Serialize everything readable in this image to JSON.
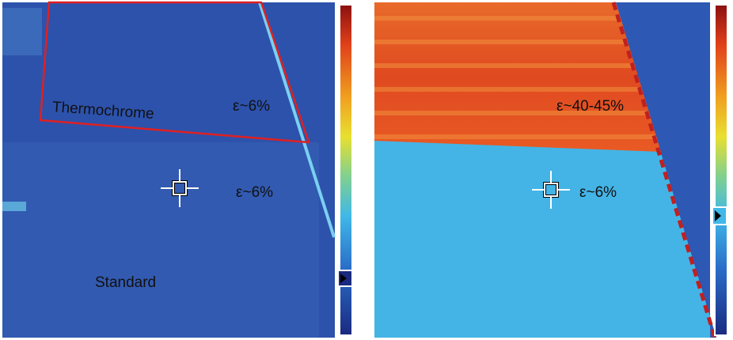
{
  "left_panel": {
    "region_top": "Thermochrome",
    "emissivity_top": "ε~6%",
    "emissivity_bottom": "ε~6%",
    "region_bottom": "Standard"
  },
  "right_panel": {
    "emissivity_top": "ε~40-45%",
    "emissivity_bottom": "ε~6%"
  }
}
